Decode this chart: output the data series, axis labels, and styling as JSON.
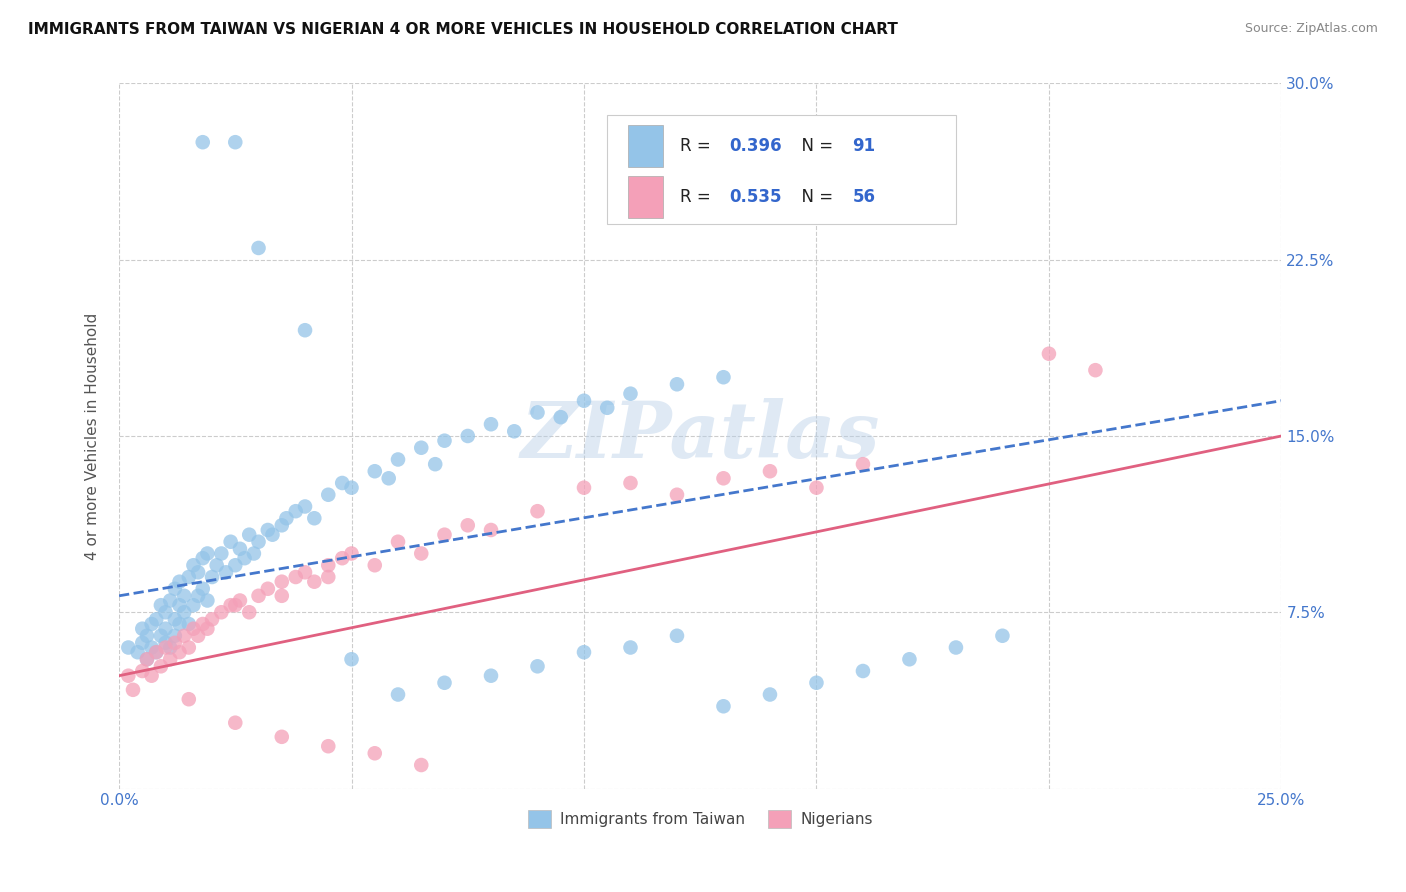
{
  "title": "IMMIGRANTS FROM TAIWAN VS NIGERIAN 4 OR MORE VEHICLES IN HOUSEHOLD CORRELATION CHART",
  "source": "Source: ZipAtlas.com",
  "ylabel": "4 or more Vehicles in Household",
  "xmin": 0.0,
  "xmax": 0.25,
  "ymin": 0.0,
  "ymax": 0.3,
  "xticks": [
    0.0,
    0.05,
    0.1,
    0.15,
    0.2,
    0.25
  ],
  "yticks": [
    0.0,
    0.075,
    0.15,
    0.225,
    0.3
  ],
  "taiwan_R": 0.396,
  "taiwan_N": 91,
  "nigeria_R": 0.535,
  "nigeria_N": 56,
  "taiwan_color": "#94c4e8",
  "nigeria_color": "#f4a0b8",
  "taiwan_line_color": "#4477cc",
  "nigeria_line_color": "#e06080",
  "background_color": "#ffffff",
  "grid_color": "#cccccc",
  "watermark": "ZIPatlas",
  "taiwan_line_x0": 0.0,
  "taiwan_line_y0": 0.082,
  "taiwan_line_x1": 0.25,
  "taiwan_line_y1": 0.165,
  "nigeria_line_x0": 0.0,
  "nigeria_line_y0": 0.048,
  "nigeria_line_x1": 0.25,
  "nigeria_line_y1": 0.15,
  "taiwan_x": [
    0.002,
    0.004,
    0.005,
    0.005,
    0.006,
    0.006,
    0.007,
    0.007,
    0.008,
    0.008,
    0.009,
    0.009,
    0.01,
    0.01,
    0.01,
    0.011,
    0.011,
    0.012,
    0.012,
    0.012,
    0.013,
    0.013,
    0.013,
    0.014,
    0.014,
    0.015,
    0.015,
    0.016,
    0.016,
    0.017,
    0.017,
    0.018,
    0.018,
    0.019,
    0.019,
    0.02,
    0.021,
    0.022,
    0.023,
    0.024,
    0.025,
    0.026,
    0.027,
    0.028,
    0.029,
    0.03,
    0.032,
    0.033,
    0.035,
    0.036,
    0.038,
    0.04,
    0.042,
    0.045,
    0.048,
    0.05,
    0.055,
    0.058,
    0.06,
    0.065,
    0.068,
    0.07,
    0.075,
    0.08,
    0.085,
    0.09,
    0.095,
    0.1,
    0.105,
    0.11,
    0.12,
    0.13,
    0.018,
    0.025,
    0.03,
    0.04,
    0.05,
    0.06,
    0.07,
    0.08,
    0.09,
    0.1,
    0.11,
    0.12,
    0.13,
    0.14,
    0.15,
    0.16,
    0.17,
    0.18,
    0.19
  ],
  "taiwan_y": [
    0.06,
    0.058,
    0.062,
    0.068,
    0.055,
    0.065,
    0.06,
    0.07,
    0.058,
    0.072,
    0.065,
    0.078,
    0.062,
    0.068,
    0.075,
    0.06,
    0.08,
    0.065,
    0.072,
    0.085,
    0.07,
    0.078,
    0.088,
    0.075,
    0.082,
    0.07,
    0.09,
    0.078,
    0.095,
    0.082,
    0.092,
    0.085,
    0.098,
    0.08,
    0.1,
    0.09,
    0.095,
    0.1,
    0.092,
    0.105,
    0.095,
    0.102,
    0.098,
    0.108,
    0.1,
    0.105,
    0.11,
    0.108,
    0.112,
    0.115,
    0.118,
    0.12,
    0.115,
    0.125,
    0.13,
    0.128,
    0.135,
    0.132,
    0.14,
    0.145,
    0.138,
    0.148,
    0.15,
    0.155,
    0.152,
    0.16,
    0.158,
    0.165,
    0.162,
    0.168,
    0.172,
    0.175,
    0.275,
    0.275,
    0.23,
    0.195,
    0.055,
    0.04,
    0.045,
    0.048,
    0.052,
    0.058,
    0.06,
    0.065,
    0.035,
    0.04,
    0.045,
    0.05,
    0.055,
    0.06,
    0.065
  ],
  "nigeria_x": [
    0.002,
    0.003,
    0.005,
    0.006,
    0.007,
    0.008,
    0.009,
    0.01,
    0.011,
    0.012,
    0.013,
    0.014,
    0.015,
    0.016,
    0.017,
    0.018,
    0.019,
    0.02,
    0.022,
    0.024,
    0.026,
    0.028,
    0.03,
    0.032,
    0.035,
    0.038,
    0.04,
    0.042,
    0.045,
    0.048,
    0.05,
    0.055,
    0.06,
    0.065,
    0.07,
    0.075,
    0.08,
    0.09,
    0.1,
    0.11,
    0.12,
    0.13,
    0.14,
    0.15,
    0.16,
    0.2,
    0.21,
    0.025,
    0.035,
    0.045,
    0.015,
    0.025,
    0.035,
    0.045,
    0.055,
    0.065
  ],
  "nigeria_y": [
    0.048,
    0.042,
    0.05,
    0.055,
    0.048,
    0.058,
    0.052,
    0.06,
    0.055,
    0.062,
    0.058,
    0.065,
    0.06,
    0.068,
    0.065,
    0.07,
    0.068,
    0.072,
    0.075,
    0.078,
    0.08,
    0.075,
    0.082,
    0.085,
    0.088,
    0.09,
    0.092,
    0.088,
    0.095,
    0.098,
    0.1,
    0.095,
    0.105,
    0.1,
    0.108,
    0.112,
    0.11,
    0.118,
    0.128,
    0.13,
    0.125,
    0.132,
    0.135,
    0.128,
    0.138,
    0.185,
    0.178,
    0.078,
    0.082,
    0.09,
    0.038,
    0.028,
    0.022,
    0.018,
    0.015,
    0.01
  ]
}
